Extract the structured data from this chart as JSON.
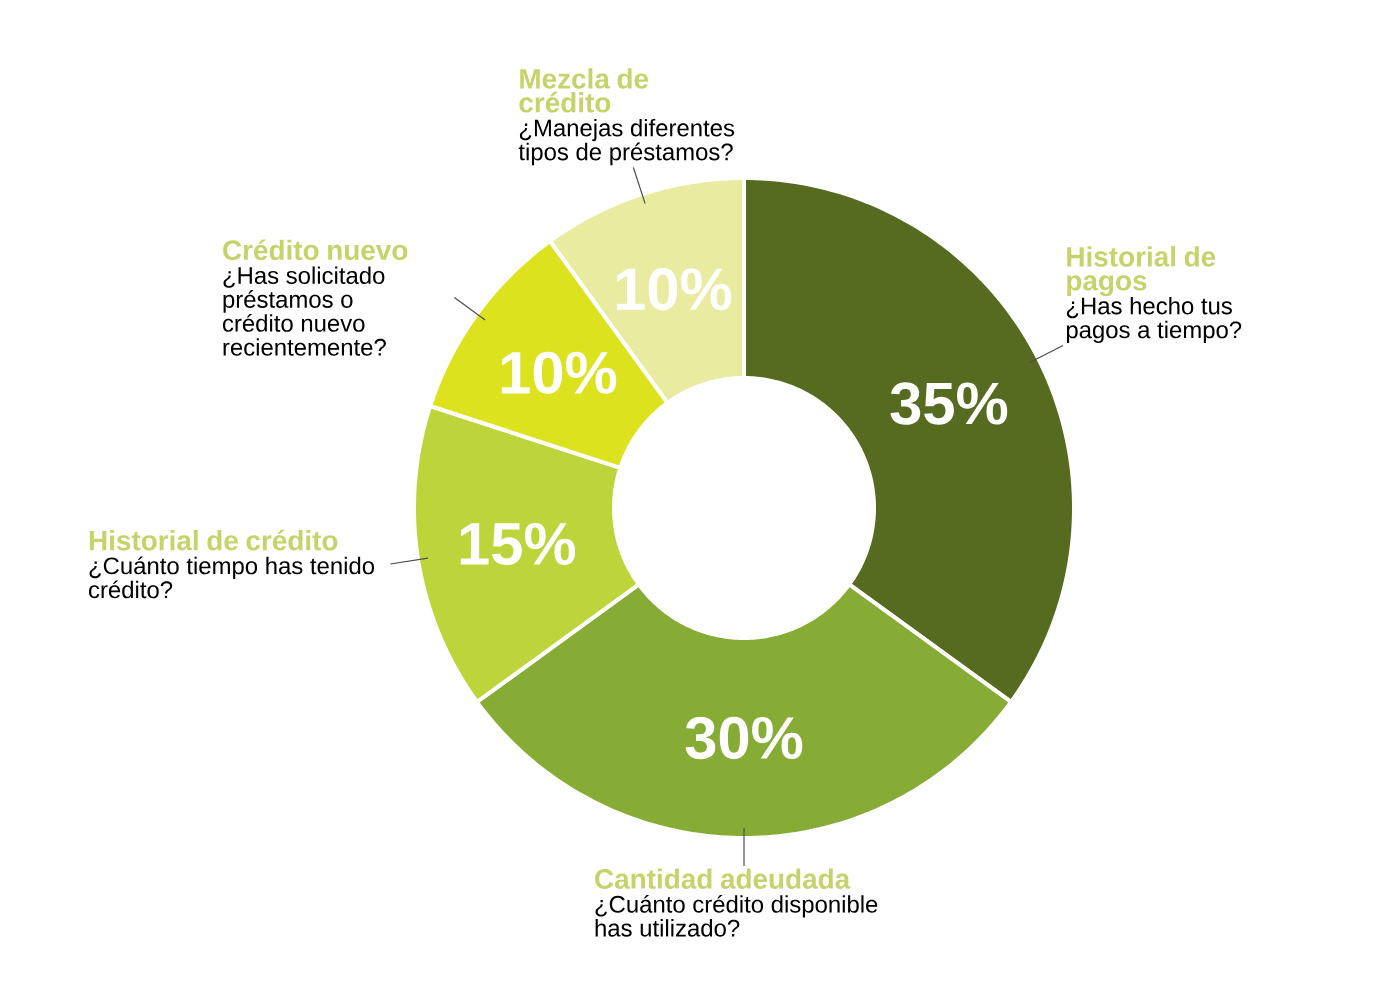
{
  "chart_data": {
    "type": "donut",
    "categories": [
      "Historial de pagos",
      "Cantidad adeudada",
      "Historial de crédito",
      "Crédito nuevo",
      "Mezcla de crédito"
    ],
    "values": [
      35,
      30,
      15,
      10,
      10
    ],
    "value_labels": [
      "35%",
      "30%",
      "15%",
      "10%",
      "10%"
    ],
    "colors": [
      "#566b1f",
      "#86ac35",
      "#bdd53a",
      "#dde21f",
      "#e8eba0"
    ],
    "annotations": [
      "¿Has hecho tus pagos a tiempo?",
      "¿Cuánto crédito disponible has utilizado?",
      "¿Cuánto tiempo has tenido crédito?",
      "¿Has solicitado préstamos o crédito nuevo recientemente?",
      "¿Manejas diferentes tipos de préstamos?"
    ]
  }
}
